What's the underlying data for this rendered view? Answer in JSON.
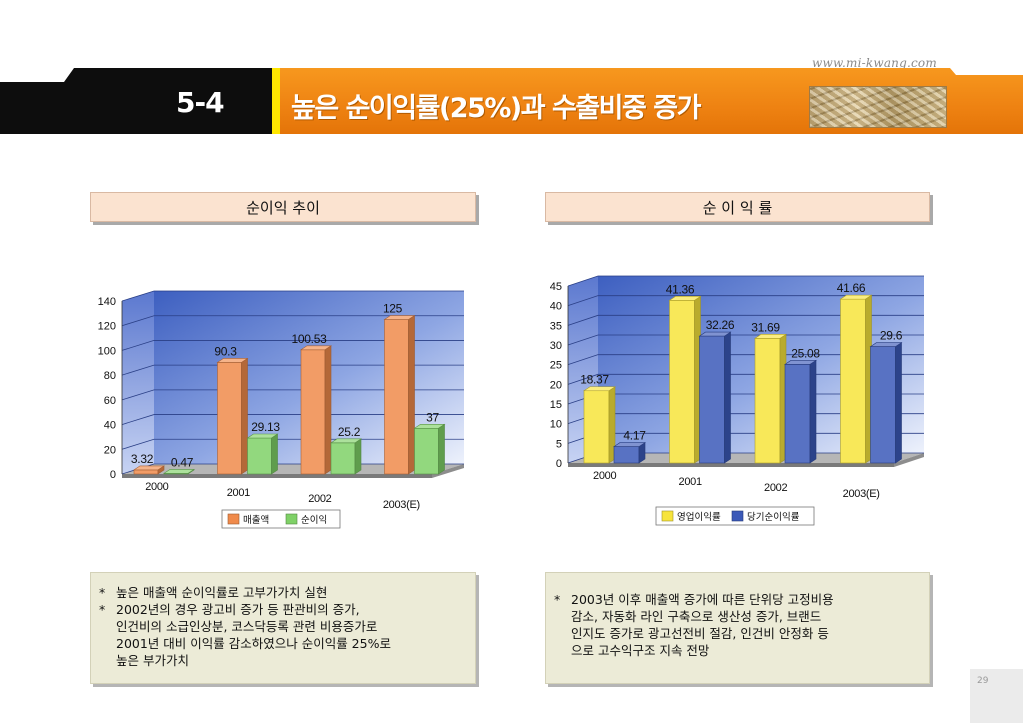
{
  "header": {
    "url": "www.mi-kwang.com",
    "section_num": "5-4",
    "title": "높은 순이익률(25%)과 수출비중 증가"
  },
  "panels": {
    "left_title": "순이익 추이",
    "right_title": "순 이 익 률"
  },
  "chart_data": [
    {
      "type": "bar",
      "categories": [
        "2000",
        "2001",
        "2002",
        "2003(E)"
      ],
      "series": [
        {
          "name": "매출액",
          "values": [
            3.32,
            90.3,
            100.53,
            125
          ],
          "labels": [
            "3.32",
            "90.3",
            "100.53",
            "125"
          ],
          "color": "#f08a4b"
        },
        {
          "name": "순이익",
          "values": [
            0.47,
            29.13,
            25.2,
            37
          ],
          "labels": [
            "0.47",
            "29.13",
            "25.2",
            "37"
          ],
          "color": "#7fd167"
        }
      ],
      "ylim": [
        0,
        140
      ],
      "yticks": [
        "0",
        "20",
        "40",
        "60",
        "80",
        "100",
        "120",
        "140"
      ],
      "grid": true,
      "legend": "bottom"
    },
    {
      "type": "bar",
      "categories": [
        "2000",
        "2001",
        "2002",
        "2003(E)"
      ],
      "series": [
        {
          "name": "영업이익률",
          "values": [
            18.37,
            41.36,
            31.69,
            41.66
          ],
          "labels": [
            "18.37",
            "41.36",
            "31.69",
            "41.66"
          ],
          "color": "#f7e43c"
        },
        {
          "name": "당기순이익률",
          "values": [
            4.17,
            32.26,
            25.08,
            29.6
          ],
          "labels": [
            "4.17",
            "32.26",
            "25.08",
            "29.6"
          ],
          "color": "#3b59b8"
        }
      ],
      "ylim": [
        0,
        45
      ],
      "yticks": [
        "0",
        "5",
        "10",
        "15",
        "20",
        "25",
        "30",
        "35",
        "40",
        "45"
      ],
      "grid": true,
      "legend": "bottom"
    }
  ],
  "notes": {
    "left": [
      "높은 매출액 순이익률로 고부가가치 실현",
      "2002년의 경우 광고비 증가 등 판관비의 증가,",
      "인건비의 소급인상분, 코스닥등록 관련 비용증가로",
      "2001년 대비 이익률 감소하였으나 순이익률 25%로",
      "높은 부가가치"
    ],
    "right": [
      "2003년 이후 매출액 증가에 따른 단위당 고정비용",
      "감소, 자동화 라인 구축으로 생산성 증가, 브랜드",
      "인지도 증가로 광고선전비 절감, 인건비 안정화 등",
      "으로 고수익구조 지속 전망"
    ]
  },
  "page_number": "29"
}
